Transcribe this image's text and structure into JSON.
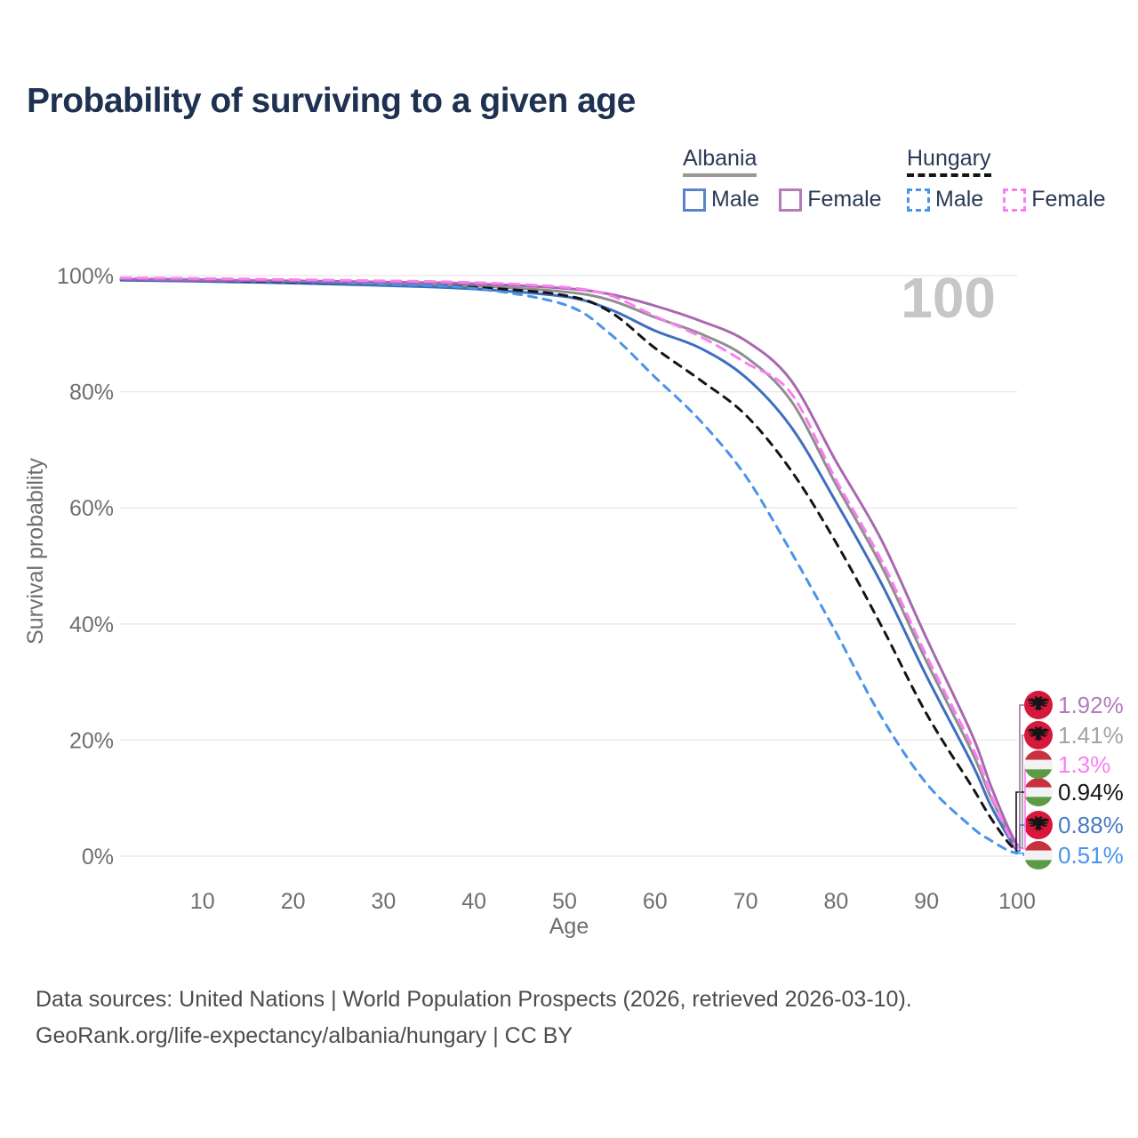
{
  "title": "Probability of surviving to a given age",
  "legend": {
    "groups": [
      {
        "name": "Albania",
        "underline_style": "solid",
        "underline_color": "#999999",
        "items": [
          {
            "label": "Male",
            "color": "#5B84C8",
            "dash": false
          },
          {
            "label": "Female",
            "color": "#B77AB8",
            "dash": false
          }
        ]
      },
      {
        "name": "Hungary",
        "underline_style": "dashed",
        "underline_color": "#141414",
        "items": [
          {
            "label": "Male",
            "color": "#4B93E8",
            "dash": true
          },
          {
            "label": "Female",
            "color": "#FB7DF2",
            "dash": true
          }
        ]
      }
    ]
  },
  "chart_data": {
    "type": "line",
    "title": "Probability of surviving to a given age",
    "xlabel": "Age",
    "ylabel": "Survival probability",
    "xlim": [
      0,
      100
    ],
    "ylim": [
      0,
      100
    ],
    "grid": "horizontal-only",
    "legend_position": "top-right",
    "hover_age_label": "100",
    "x_ticks": [
      {
        "v": 10,
        "label": "10"
      },
      {
        "v": 20,
        "label": "20"
      },
      {
        "v": 30,
        "label": "30"
      },
      {
        "v": 40,
        "label": "40"
      },
      {
        "v": 50,
        "label": "50"
      },
      {
        "v": 60,
        "label": "60"
      },
      {
        "v": 70,
        "label": "70"
      },
      {
        "v": 80,
        "label": "80"
      },
      {
        "v": 90,
        "label": "90"
      },
      {
        "v": 100,
        "label": "100"
      }
    ],
    "y_ticks": [
      {
        "v": 0,
        "label": "0%"
      },
      {
        "v": 20,
        "label": "20%"
      },
      {
        "v": 40,
        "label": "40%"
      },
      {
        "v": 60,
        "label": "60%"
      },
      {
        "v": 80,
        "label": "80%"
      },
      {
        "v": 100,
        "label": "100%"
      }
    ],
    "x": [
      1,
      10,
      20,
      30,
      40,
      50,
      55,
      60,
      65,
      70,
      75,
      80,
      85,
      90,
      95,
      97,
      99,
      100
    ],
    "series": [
      {
        "name": "Albania total",
        "country": "albania",
        "sex": "total",
        "color": "#8F8F8F",
        "dash": null,
        "end_row": 1,
        "end_label": "1.41%",
        "end_label_color": "#A3A3A3",
        "values": [
          99.3,
          99.1,
          98.9,
          98.6,
          98.2,
          97.2,
          95.8,
          92.8,
          90.0,
          86.0,
          78.5,
          64.0,
          50.0,
          33.5,
          18.0,
          10.5,
          4.2,
          1.41
        ]
      },
      {
        "name": "Albania Male",
        "country": "albania",
        "sex": "male",
        "color": "#3E6FBE",
        "dash": null,
        "end_row": 4,
        "end_label": "0.88%",
        "end_label_color": "#4A7AC2",
        "values": [
          99.2,
          99.0,
          98.7,
          98.3,
          97.7,
          96.4,
          94.2,
          90.5,
          87.5,
          82.5,
          74.0,
          61.0,
          47.0,
          31.0,
          16.0,
          9.0,
          3.4,
          0.88
        ]
      },
      {
        "name": "Hungary total",
        "country": "hungary",
        "sex": "total",
        "color": "#141414",
        "dash": "9 8",
        "end_row": 3,
        "end_label": "0.94%",
        "end_label_color": "#141414",
        "values": [
          99.4,
          99.2,
          98.9,
          98.5,
          98.0,
          96.6,
          93.8,
          87.5,
          82.0,
          76.0,
          66.5,
          54.0,
          39.7,
          24.5,
          12.0,
          6.8,
          2.4,
          0.94
        ]
      },
      {
        "name": "Hungary Male",
        "country": "hungary",
        "sex": "male",
        "color": "#4B93E8",
        "dash": "9 8",
        "end_row": 5,
        "end_label": "0.51%",
        "end_label_color": "#4B93E8",
        "values": [
          99.5,
          99.3,
          99.0,
          98.5,
          97.8,
          95.0,
          90.0,
          82.5,
          75.0,
          65.5,
          52.5,
          38.5,
          24.0,
          12.5,
          5.0,
          2.8,
          1.0,
          0.51
        ]
      },
      {
        "name": "Albania Female",
        "country": "albania",
        "sex": "female",
        "color": "#A869AF",
        "dash": null,
        "end_row": 0,
        "end_label": "1.92%",
        "end_label_color": "#B07CBE",
        "values": [
          99.4,
          99.2,
          99.1,
          98.9,
          98.6,
          97.8,
          96.8,
          94.8,
          92.2,
          88.8,
          82.0,
          68.0,
          54.5,
          37.5,
          21.0,
          12.5,
          5.0,
          1.92
        ]
      },
      {
        "name": "Hungary Female",
        "country": "hungary",
        "sex": "female",
        "color": "#FB7DF2",
        "dash": "11 8",
        "end_row": 2,
        "end_label": "1.3%",
        "end_label_color": "#FB7DF2",
        "values": [
          99.6,
          99.5,
          99.3,
          99.1,
          98.8,
          98.0,
          96.6,
          93.0,
          89.5,
          85.0,
          79.8,
          64.8,
          51.0,
          34.5,
          19.0,
          11.0,
          3.9,
          1.3
        ]
      }
    ]
  },
  "flags": {
    "albania": {
      "red": "#D8173C",
      "eagle": "#141414"
    },
    "hungary": {
      "red": "#C8313E",
      "white": "#F2F2F2",
      "green": "#5D9A44"
    }
  },
  "colors": {
    "title": "#1E3150",
    "axis_text": "#6E6E6E",
    "gridline": "#E7E7E7",
    "watermark": "#C6C6C6",
    "footer_text": "#4C4C4C"
  },
  "footer": {
    "line1": "Data sources: United Nations | World Population Prospects (2026, retrieved 2026-03-10).",
    "line2": "GeoRank.org/life-expectancy/albania/hungary | CC BY"
  }
}
